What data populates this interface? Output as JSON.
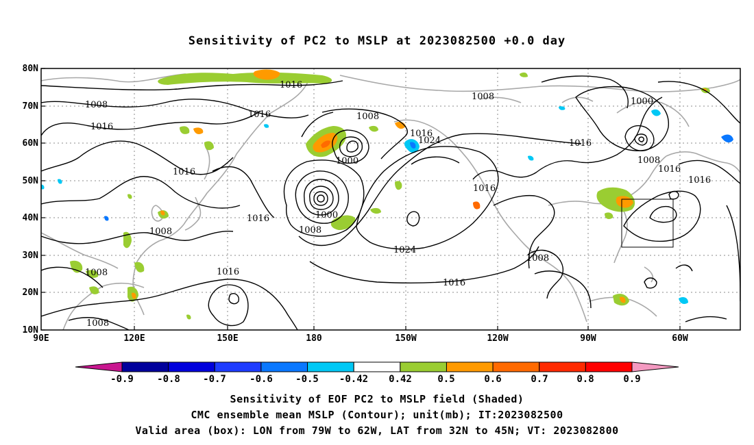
{
  "title": "Sensitivity of PC2 to MSLP at 2023082500 +0.0 day",
  "lat_labels": [
    "80N",
    "70N",
    "60N",
    "50N",
    "40N",
    "30N",
    "20N",
    "10N"
  ],
  "lon_labels": [
    "90E",
    "120E",
    "150E",
    "180",
    "150W",
    "120W",
    "90W",
    "60W"
  ],
  "contour_labels": [
    "1016",
    "1008",
    "1016",
    "1016",
    "1008",
    "1016",
    "1024",
    "1000",
    "1016",
    "1000",
    "1008",
    "1016",
    "1016",
    "1024",
    "1016",
    "1008",
    "1016",
    "1008",
    "1000",
    "1008",
    "1016",
    "1008",
    "1008",
    "1016",
    "1016",
    "1008"
  ],
  "colorbar": {
    "labels": [
      "-0.9",
      "-0.8",
      "-0.7",
      "-0.6",
      "-0.5",
      "-0.42",
      "0.42",
      "0.5",
      "0.6",
      "0.7",
      "0.8",
      "0.9"
    ],
    "colors": {
      "below": "#c8168f",
      "above": "#f49ac1",
      "bins": [
        "#00009c",
        "#0000dc",
        "#1e3cff",
        "#0a78ff",
        "#00c8f5",
        "#ffffff",
        "#9acd32",
        "#ff9a00",
        "#ff6a00",
        "#ff2a00",
        "#ff0000"
      ]
    }
  },
  "valid_box": {
    "lon_from": "79W",
    "lon_to": "62W",
    "lat_from": "32N",
    "lat_to": "45N"
  },
  "captions": [
    "Sensitivity of EOF PC2 to MSLP field (Shaded)",
    "CMC ensemble mean MSLP (Contour); unit(mb); IT:2023082500",
    "Valid area (box): LON from 79W to 62W, LAT from 32N to 45N; VT: 2023082800"
  ]
}
